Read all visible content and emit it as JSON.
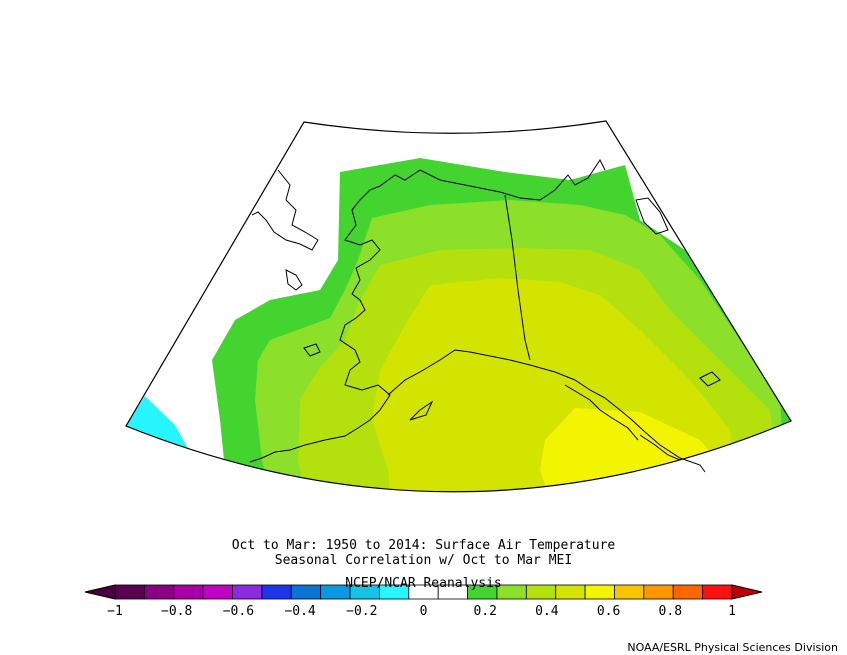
{
  "title_lines": [
    "Oct to Mar: 1950 to 2014: Surface Air Temperature",
    "Seasonal Correlation w/ Oct to Mar MEI",
    "NCEP/NCAR Reanalysis"
  ],
  "credit": "NOAA/ESRL Physical Sciences Division",
  "colorbar": {
    "range": [
      -1,
      1
    ],
    "step": 0.1,
    "tick_values": [
      -1,
      -0.8,
      -0.6,
      -0.4,
      -0.2,
      0,
      0.2,
      0.4,
      0.6,
      0.8,
      1
    ],
    "tick_labels": [
      "−1",
      "−0.8",
      "−0.6",
      "−0.4",
      "−0.2",
      "0",
      "0.2",
      "0.4",
      "0.6",
      "0.8",
      "1"
    ],
    "low_color": "#4a0040",
    "high_color": "#c00000",
    "colors": [
      "#5a0050",
      "#8a0082",
      "#a800a6",
      "#c200c4",
      "#8c2ae0",
      "#1e34e8",
      "#0e74d4",
      "#0a98e0",
      "#14c4e6",
      "#28f6ff",
      "#ffffff",
      "#ffffff",
      "#44d430",
      "#8ce02a",
      "#b4e00e",
      "#d2e400",
      "#f2f400",
      "#f8c400",
      "#ff9800",
      "#ff6600",
      "#ff1010"
    ]
  },
  "map": {
    "region": "Alaska and surrounding seas",
    "colors": {
      "green": "#44d430",
      "lime": "#8ce02a",
      "yellow_green": "#b4e00e",
      "yellow_olive": "#d2e400",
      "yellow": "#f2f400",
      "orange": "#ff9800",
      "light_blue": "#28f6ff",
      "blue": "#0a98e0",
      "outline": "#000000"
    }
  }
}
